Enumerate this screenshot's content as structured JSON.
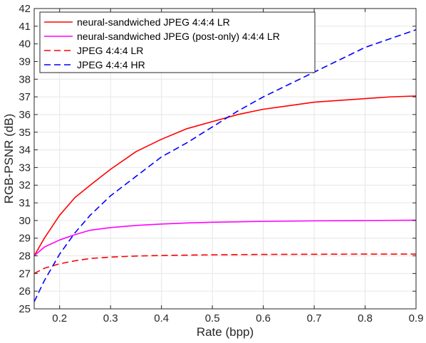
{
  "chart_data": {
    "type": "line",
    "title": "",
    "xlabel": "Rate (bpp)",
    "ylabel": "RGB-PSNR (dB)",
    "xlim": [
      0.15,
      0.9
    ],
    "ylim": [
      25,
      42
    ],
    "xticks": [
      0.2,
      0.3,
      0.4,
      0.5,
      0.6,
      0.7,
      0.8,
      0.9
    ],
    "xtick_labels": [
      "0.2",
      "0.3",
      "0.4",
      "0.5",
      "0.6",
      "0.7",
      "0.8",
      "0.9"
    ],
    "yticks": [
      25,
      26,
      27,
      28,
      29,
      30,
      31,
      32,
      33,
      34,
      35,
      36,
      37,
      38,
      39,
      40,
      41,
      42
    ],
    "ytick_labels": [
      "25",
      "26",
      "27",
      "28",
      "29",
      "30",
      "31",
      "32",
      "33",
      "34",
      "35",
      "36",
      "37",
      "38",
      "39",
      "40",
      "41",
      "42"
    ],
    "grid": true,
    "legend_position": "top-left",
    "series": [
      {
        "name": "neural-sandwiched JPEG 4:4:4 LR",
        "color": "#ff0000",
        "dash": "solid",
        "x": [
          0.15,
          0.17,
          0.2,
          0.23,
          0.26,
          0.3,
          0.35,
          0.4,
          0.45,
          0.5,
          0.55,
          0.6,
          0.65,
          0.7,
          0.75,
          0.8,
          0.85,
          0.9
        ],
        "y": [
          28.0,
          29.0,
          30.3,
          31.3,
          32.0,
          32.9,
          33.9,
          34.6,
          35.2,
          35.6,
          36.0,
          36.3,
          36.5,
          36.7,
          36.8,
          36.9,
          37.0,
          37.05
        ]
      },
      {
        "name": "neural-sandwiched JPEG (post-only) 4:4:4 LR",
        "color": "#ff00ff",
        "dash": "solid",
        "x": [
          0.15,
          0.17,
          0.2,
          0.23,
          0.26,
          0.3,
          0.35,
          0.4,
          0.45,
          0.5,
          0.6,
          0.7,
          0.8,
          0.9
        ],
        "y": [
          28.0,
          28.5,
          28.9,
          29.2,
          29.45,
          29.6,
          29.72,
          29.8,
          29.86,
          29.9,
          29.95,
          29.98,
          30.0,
          30.02
        ]
      },
      {
        "name": "JPEG 4:4:4 LR",
        "color": "#ff0000",
        "dash": "dashed",
        "x": [
          0.15,
          0.17,
          0.2,
          0.23,
          0.26,
          0.3,
          0.35,
          0.4,
          0.5,
          0.6,
          0.7,
          0.8,
          0.9
        ],
        "y": [
          27.0,
          27.3,
          27.55,
          27.72,
          27.85,
          27.93,
          27.99,
          28.02,
          28.06,
          28.08,
          28.09,
          28.1,
          28.1
        ]
      },
      {
        "name": "JPEG 4:4:4 HR",
        "color": "#0000ff",
        "dash": "dashed",
        "x": [
          0.15,
          0.17,
          0.2,
          0.23,
          0.26,
          0.3,
          0.35,
          0.4,
          0.45,
          0.5,
          0.55,
          0.6,
          0.65,
          0.7,
          0.75,
          0.8,
          0.85,
          0.9
        ],
        "y": [
          25.4,
          26.6,
          28.1,
          29.3,
          30.3,
          31.4,
          32.5,
          33.6,
          34.4,
          35.3,
          36.2,
          37.0,
          37.7,
          38.4,
          39.1,
          39.8,
          40.3,
          40.8
        ]
      }
    ]
  }
}
